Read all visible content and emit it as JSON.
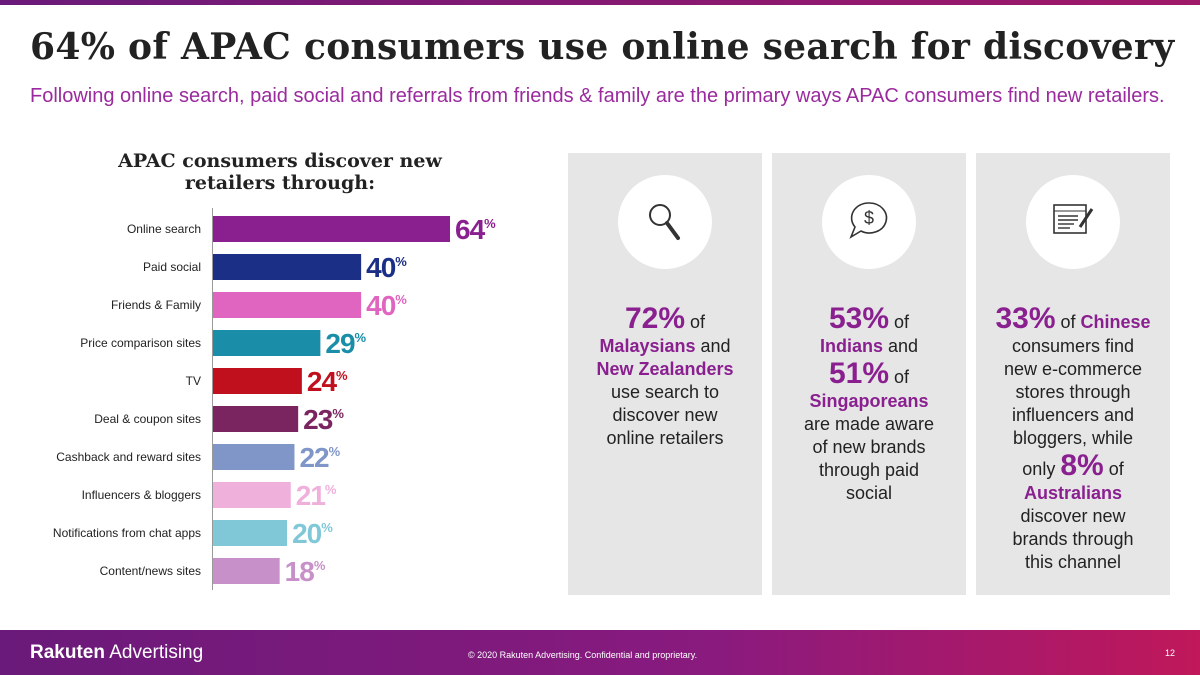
{
  "title": "64% of APAC consumers use online search for discovery",
  "subtitle": "Following online search, paid social and referrals from friends & family are the primary ways APAC consumers find new retailers.",
  "chart_data": {
    "type": "bar",
    "orientation": "horizontal",
    "title": "APAC consumers discover new retailers through:",
    "categories": [
      "Online search",
      "Paid social",
      "Friends & Family",
      "Price comparison sites",
      "TV",
      "Deal & coupon sites",
      "Cashback and reward sites",
      "Influencers & bloggers",
      "Notifications from chat apps",
      "Content/news sites"
    ],
    "values": [
      64,
      40,
      40,
      29,
      24,
      23,
      22,
      21,
      20,
      18
    ],
    "value_labels": [
      "64%",
      "40%",
      "40%",
      "29%",
      "24%",
      "23%",
      "22%",
      "21%",
      "20%",
      "18%"
    ],
    "colors": [
      "#8a2090",
      "#1c2f86",
      "#e065c0",
      "#1a8ea8",
      "#c0101e",
      "#7a2560",
      "#8096c8",
      "#f0b0dc",
      "#80c8d8",
      "#c890c8"
    ]
  },
  "panels": [
    {
      "lines": [
        [
          {
            "text": "72%",
            "style": "big"
          },
          {
            "text": " of",
            "style": "plain"
          }
        ],
        [
          {
            "text": "Malaysians",
            "style": "bold"
          },
          {
            "text": " and",
            "style": "plain"
          }
        ],
        [
          {
            "text": "New Zealanders",
            "style": "bold"
          }
        ],
        [
          {
            "text": "use search to",
            "style": "plain"
          }
        ],
        [
          {
            "text": "discover new",
            "style": "plain"
          }
        ],
        [
          {
            "text": "online retailers",
            "style": "plain"
          }
        ]
      ]
    },
    {
      "lines": [
        [
          {
            "text": "53%",
            "style": "big"
          },
          {
            "text": " of",
            "style": "plain"
          }
        ],
        [
          {
            "text": "Indians",
            "style": "bold"
          },
          {
            "text": " and",
            "style": "plain"
          }
        ],
        [
          {
            "text": "51%",
            "style": "big"
          },
          {
            "text": " of",
            "style": "plain"
          }
        ],
        [
          {
            "text": "Singaporeans",
            "style": "bold"
          }
        ],
        [
          {
            "text": "are made aware",
            "style": "plain"
          }
        ],
        [
          {
            "text": "of new brands",
            "style": "plain"
          }
        ],
        [
          {
            "text": "through paid",
            "style": "plain"
          }
        ],
        [
          {
            "text": "social",
            "style": "plain"
          }
        ]
      ]
    },
    {
      "lines": [
        [
          {
            "text": "33%",
            "style": "big"
          },
          {
            "text": " of ",
            "style": "plain"
          },
          {
            "text": "Chinese",
            "style": "bold"
          }
        ],
        [
          {
            "text": "consumers find",
            "style": "plain"
          }
        ],
        [
          {
            "text": "new e-commerce",
            "style": "plain"
          }
        ],
        [
          {
            "text": "stores through",
            "style": "plain"
          }
        ],
        [
          {
            "text": "influencers and",
            "style": "plain"
          }
        ],
        [
          {
            "text": "bloggers, while",
            "style": "plain"
          }
        ],
        [
          {
            "text": "only ",
            "style": "plain"
          },
          {
            "text": "8%",
            "style": "big"
          },
          {
            "text": " of",
            "style": "plain"
          }
        ],
        [
          {
            "text": "Australians",
            "style": "bold"
          }
        ],
        [
          {
            "text": "discover new",
            "style": "plain"
          }
        ],
        [
          {
            "text": "brands through",
            "style": "plain"
          }
        ],
        [
          {
            "text": "this channel",
            "style": "plain"
          }
        ]
      ]
    }
  ],
  "footer": {
    "brand_bold": "Rakuten",
    "brand": "Advertising",
    "copyright": "© 2020 Rakuten Advertising. Confidential and proprietary.",
    "page": "12"
  }
}
